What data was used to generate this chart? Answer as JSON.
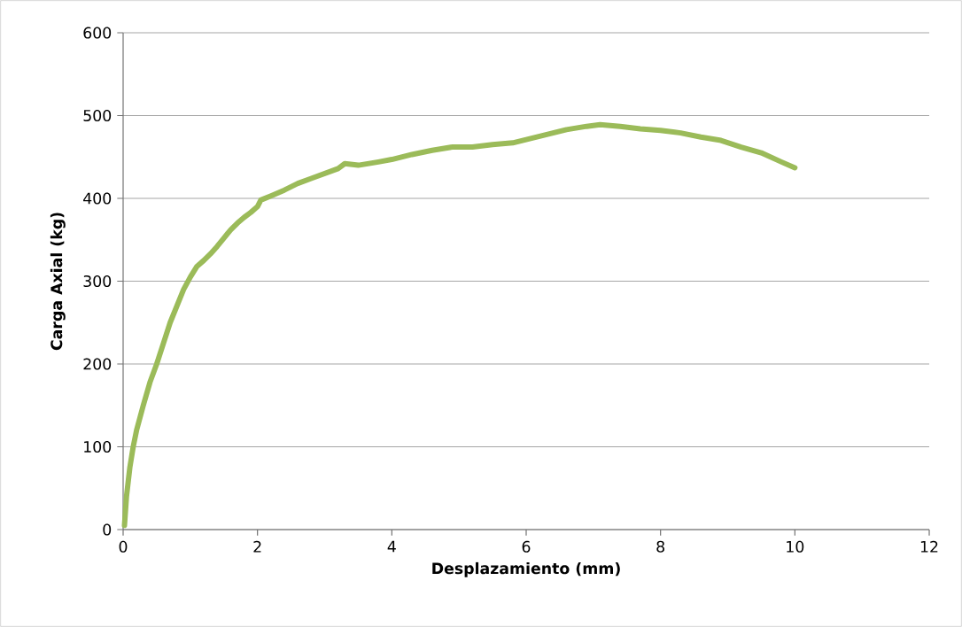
{
  "chart_data": {
    "type": "line",
    "xlabel": "Desplazamiento (mm)",
    "ylabel": "Carga Axial (kg)",
    "xlim": [
      0,
      12
    ],
    "xticks": [
      0,
      2,
      4,
      6,
      8,
      10,
      12
    ],
    "ylim": [
      0,
      600
    ],
    "yticks": [
      0,
      100,
      200,
      300,
      400,
      500,
      600
    ],
    "grid": "y",
    "marker": "none",
    "line_style": "solid",
    "series": [
      {
        "color": "#9bbb59",
        "x": [
          0.02,
          0.05,
          0.1,
          0.15,
          0.2,
          0.3,
          0.4,
          0.5,
          0.6,
          0.7,
          0.8,
          0.9,
          1.0,
          1.1,
          1.2,
          1.3,
          1.4,
          1.5,
          1.6,
          1.7,
          1.8,
          1.9,
          2.0,
          2.05,
          2.2,
          2.4,
          2.6,
          2.8,
          3.0,
          3.2,
          3.3,
          3.5,
          3.8,
          4.0,
          4.3,
          4.6,
          4.9,
          5.2,
          5.5,
          5.8,
          6.0,
          6.3,
          6.6,
          6.9,
          7.1,
          7.4,
          7.7,
          8.0,
          8.3,
          8.6,
          8.9,
          9.2,
          9.5,
          9.8,
          10.0
        ],
        "values": [
          5,
          40,
          75,
          100,
          120,
          150,
          178,
          200,
          225,
          250,
          270,
          290,
          305,
          318,
          325,
          333,
          342,
          352,
          362,
          370,
          377,
          383,
          390,
          398,
          403,
          410,
          418,
          424,
          430,
          436,
          442,
          440,
          444,
          447,
          453,
          458,
          462,
          462,
          465,
          467,
          471,
          477,
          483,
          487,
          489,
          487,
          484,
          482,
          479,
          474,
          470,
          462,
          455,
          444,
          437
        ]
      }
    ]
  }
}
